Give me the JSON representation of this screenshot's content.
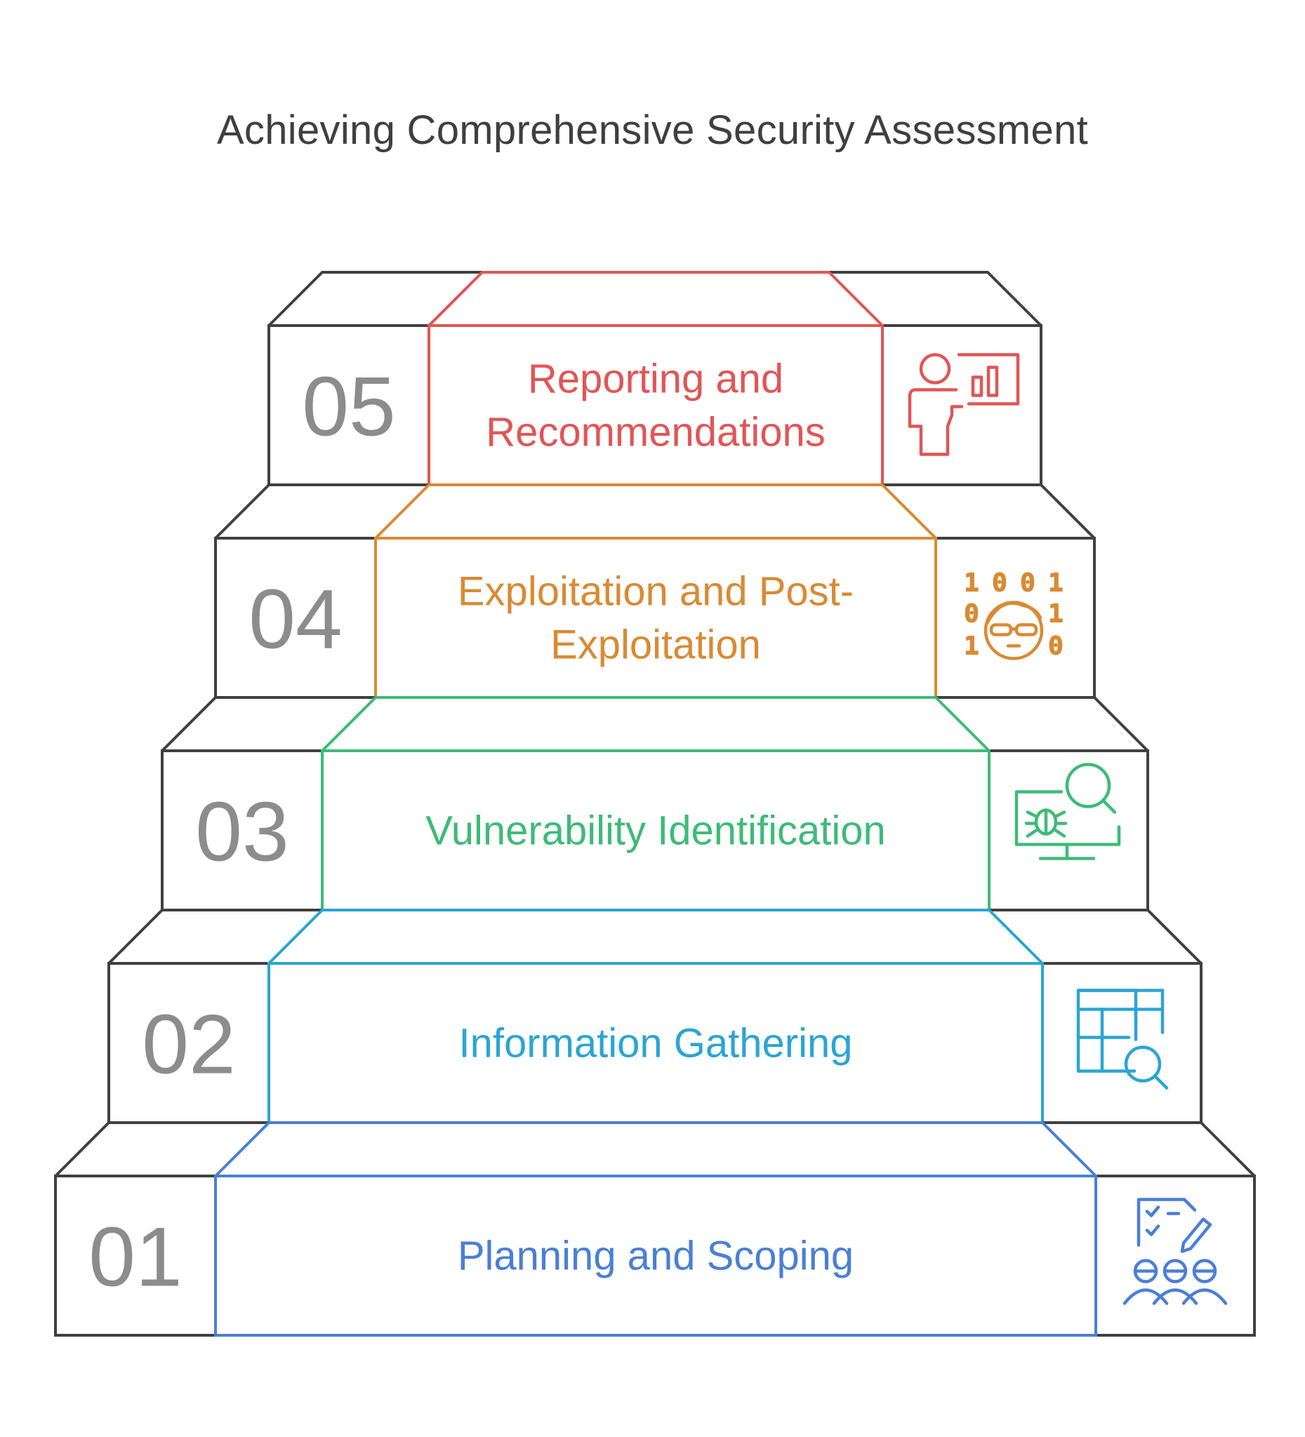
{
  "title": "Achieving Comprehensive Security Assessment",
  "steps": [
    {
      "number": "01",
      "label_lines": [
        "Planning and Scoping"
      ],
      "color": "#4a7fd6",
      "icon": "checklist-team-icon"
    },
    {
      "number": "02",
      "label_lines": [
        "Information Gathering"
      ],
      "color": "#2ba5d3",
      "icon": "table-search-icon"
    },
    {
      "number": "03",
      "label_lines": [
        "Vulnerability Identification"
      ],
      "color": "#3dbb78",
      "icon": "monitor-bug-search-icon"
    },
    {
      "number": "04",
      "label_lines": [
        "Exploitation and Post-",
        "Exploitation"
      ],
      "color": "#d98a33",
      "icon": "hacker-binary-icon"
    },
    {
      "number": "05",
      "label_lines": [
        "Reporting and",
        "Recommendations"
      ],
      "color": "#e25555",
      "icon": "presenter-chart-icon"
    }
  ],
  "binary_digits": [
    "1",
    "0",
    "0",
    "1",
    "0",
    "1",
    "1",
    "0"
  ],
  "outline_color": "#404040"
}
